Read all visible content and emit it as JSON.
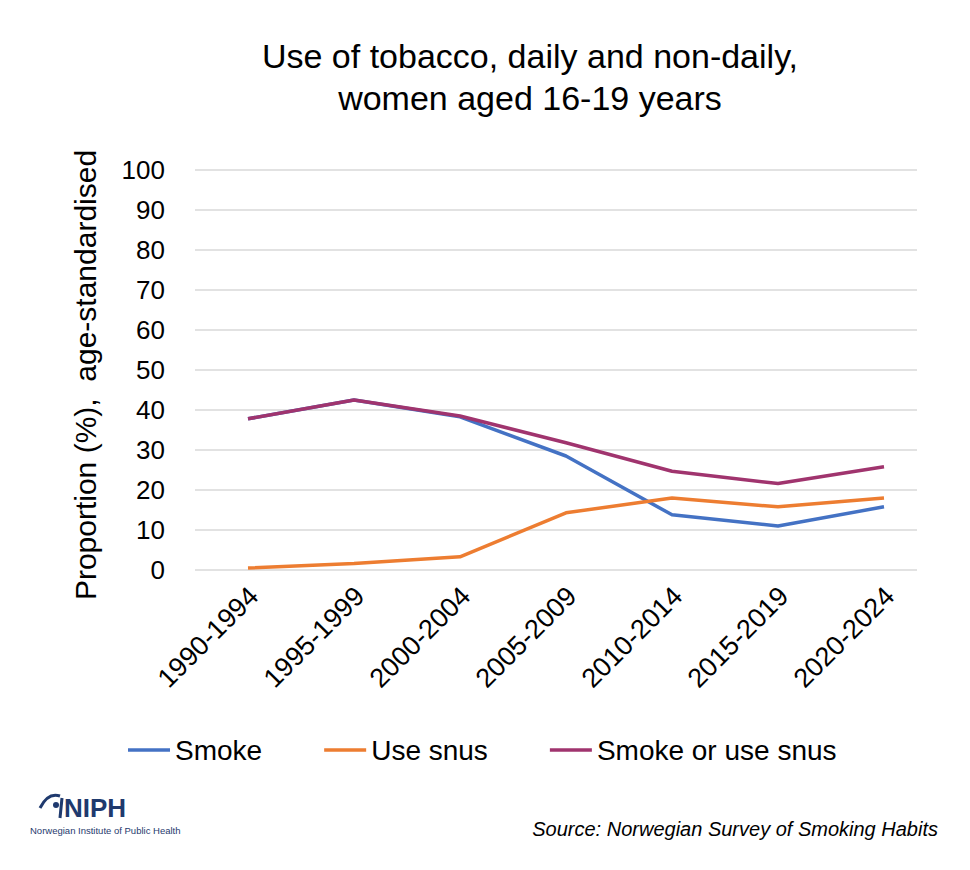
{
  "chart_data": {
    "type": "line",
    "title": "Use of tobacco, daily and non-daily, women aged 16-19 years",
    "ylabel": "Proportion (%),  age-standardised",
    "categories": [
      "1990-1994",
      "1995-1999",
      "2000-2004",
      "2005-2009",
      "2010-2014",
      "2015-2019",
      "2020-2024"
    ],
    "series": [
      {
        "name": "Smoke",
        "color": "#4472c4",
        "values": [
          37.8,
          42.5,
          38.3,
          28.5,
          13.8,
          11.0,
          15.8
        ]
      },
      {
        "name": "Use snus",
        "color": "#ed7d31",
        "values": [
          0.5,
          1.6,
          3.3,
          14.3,
          18.0,
          15.8,
          18.0
        ]
      },
      {
        "name": "Smoke or use snus",
        "color": "#a0346e",
        "values": [
          37.8,
          42.5,
          38.5,
          31.8,
          24.7,
          21.6,
          25.8
        ]
      }
    ],
    "ylim": [
      0,
      100
    ],
    "yticks": [
      0,
      10,
      20,
      30,
      40,
      50,
      60,
      70,
      80,
      90,
      100
    ],
    "grid": true,
    "legend": "bottom",
    "source": "Source: Norwegian Survey of Smoking Habits",
    "logo_text": "NIPH",
    "logo_subtitle": "Norwegian Institute of Public Health"
  }
}
